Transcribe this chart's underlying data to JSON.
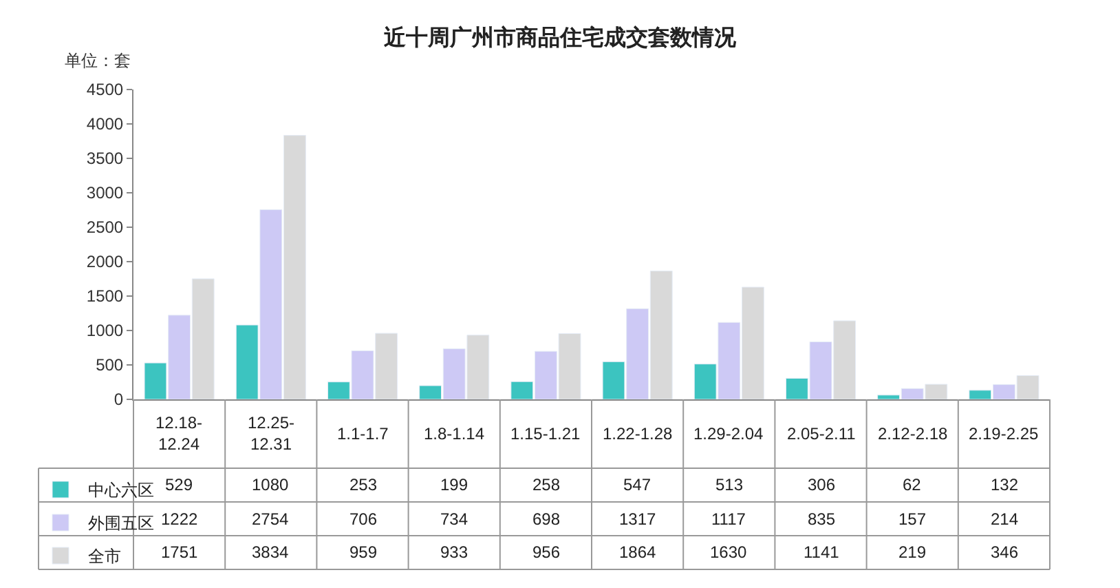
{
  "chart_data": {
    "type": "bar",
    "title": "近十周广州市商品住宅成交套数情况",
    "ylabel": "单位：套",
    "categories": [
      "12.18-12.24",
      "12.25-12.31",
      "1.1-1.7",
      "1.8-1.14",
      "1.15-1.21",
      "1.22-1.28",
      "1.29-2.04",
      "2.05-2.11",
      "2.12-2.18",
      "2.19-2.25"
    ],
    "series": [
      {
        "name": "中心六区",
        "color": "#3cc4c0",
        "values": [
          529,
          1080,
          253,
          199,
          258,
          547,
          513,
          306,
          62,
          132
        ]
      },
      {
        "name": "外围五区",
        "color": "#cdc9f5",
        "values": [
          1222,
          2754,
          706,
          734,
          698,
          1317,
          1117,
          835,
          157,
          214
        ]
      },
      {
        "name": "全市",
        "color": "#d9d9d9",
        "values": [
          1751,
          3834,
          959,
          933,
          956,
          1864,
          1630,
          1141,
          219,
          346
        ]
      }
    ],
    "ylim": [
      0,
      4500
    ],
    "yticks": [
      0,
      500,
      1000,
      1500,
      2000,
      2500,
      3000,
      3500,
      4000,
      4500
    ],
    "legend": "bottom left",
    "data_labels": true
  }
}
